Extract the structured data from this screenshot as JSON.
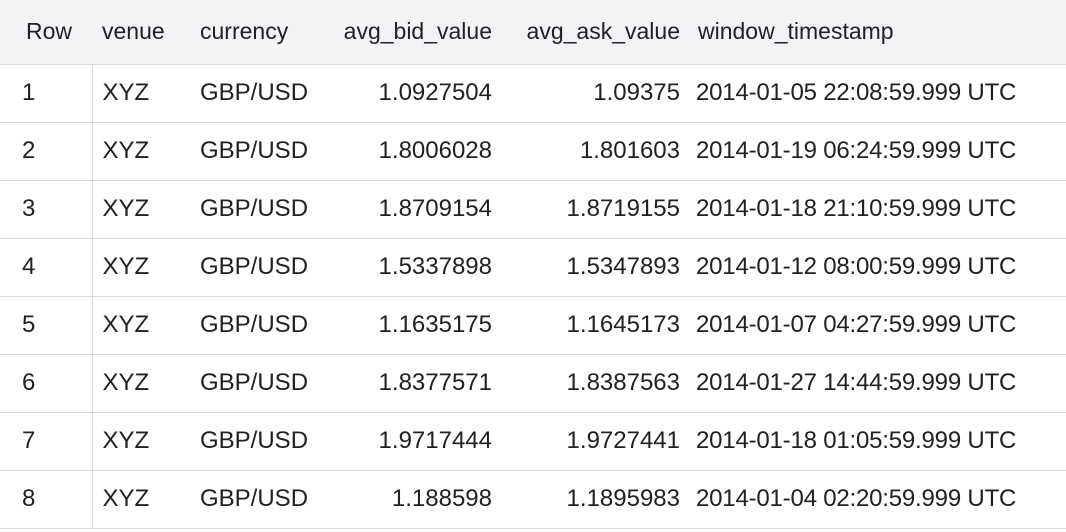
{
  "table": {
    "headers": [
      "Row",
      "venue",
      "currency",
      "avg_bid_value",
      "avg_ask_value",
      "window_timestamp"
    ],
    "rows": [
      {
        "row": "1",
        "venue": "XYZ",
        "currency": "GBP/USD",
        "avg_bid_value": "1.0927504",
        "avg_ask_value": "1.09375",
        "window_timestamp": "2014-01-05 22:08:59.999 UTC"
      },
      {
        "row": "2",
        "venue": "XYZ",
        "currency": "GBP/USD",
        "avg_bid_value": "1.8006028",
        "avg_ask_value": "1.801603",
        "window_timestamp": "2014-01-19 06:24:59.999 UTC"
      },
      {
        "row": "3",
        "venue": "XYZ",
        "currency": "GBP/USD",
        "avg_bid_value": "1.8709154",
        "avg_ask_value": "1.8719155",
        "window_timestamp": "2014-01-18 21:10:59.999 UTC"
      },
      {
        "row": "4",
        "venue": "XYZ",
        "currency": "GBP/USD",
        "avg_bid_value": "1.5337898",
        "avg_ask_value": "1.5347893",
        "window_timestamp": "2014-01-12 08:00:59.999 UTC"
      },
      {
        "row": "5",
        "venue": "XYZ",
        "currency": "GBP/USD",
        "avg_bid_value": "1.1635175",
        "avg_ask_value": "1.1645173",
        "window_timestamp": "2014-01-07 04:27:59.999 UTC"
      },
      {
        "row": "6",
        "venue": "XYZ",
        "currency": "GBP/USD",
        "avg_bid_value": "1.8377571",
        "avg_ask_value": "1.8387563",
        "window_timestamp": "2014-01-27 14:44:59.999 UTC"
      },
      {
        "row": "7",
        "venue": "XYZ",
        "currency": "GBP/USD",
        "avg_bid_value": "1.9717444",
        "avg_ask_value": "1.9727441",
        "window_timestamp": "2014-01-18 01:05:59.999 UTC"
      },
      {
        "row": "8",
        "venue": "XYZ",
        "currency": "GBP/USD",
        "avg_bid_value": "1.188598",
        "avg_ask_value": "1.1895983",
        "window_timestamp": "2014-01-04 02:20:59.999 UTC"
      }
    ]
  }
}
